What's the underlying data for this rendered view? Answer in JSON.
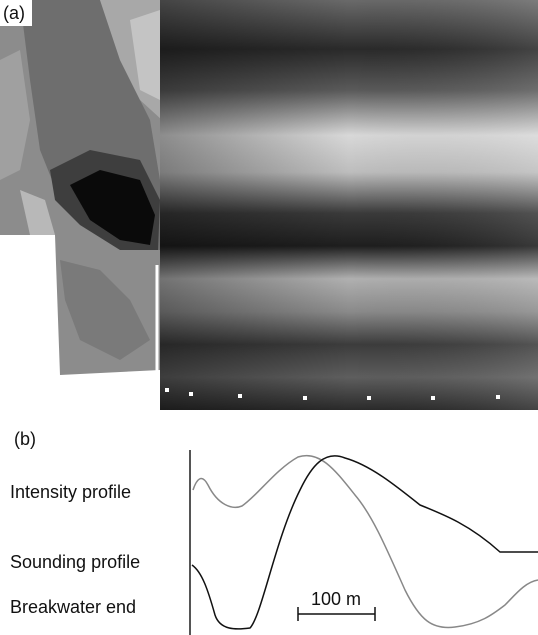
{
  "panel_a": {
    "label": "(a)"
  },
  "panel_b": {
    "label": "(b)",
    "profile_labels": [
      "Intensity profile",
      "Sounding profile",
      "Breakwater end"
    ],
    "scale_label": "100 m"
  }
}
